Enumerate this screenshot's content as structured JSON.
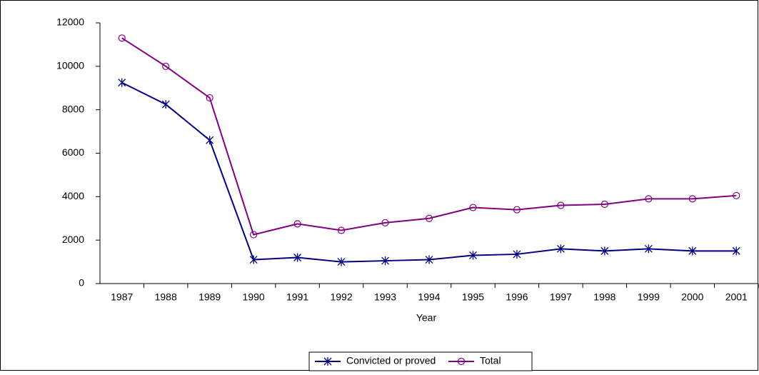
{
  "chart_data": {
    "type": "line",
    "x_label": "Year",
    "categories": [
      "1987",
      "1988",
      "1989",
      "1990",
      "1991",
      "1992",
      "1993",
      "1994",
      "1995",
      "1996",
      "1997",
      "1998",
      "1999",
      "2000",
      "2001"
    ],
    "series": [
      {
        "name": "Convicted or proved",
        "color": "#000080",
        "marker": "asterisk",
        "values": [
          9250,
          8250,
          6600,
          1100,
          1200,
          1000,
          1050,
          1100,
          1300,
          1350,
          1600,
          1500,
          1600,
          1500,
          1500
        ]
      },
      {
        "name": "Total",
        "color": "#800080",
        "marker": "circle",
        "values": [
          11300,
          10000,
          8550,
          2250,
          2750,
          2450,
          2800,
          3000,
          3500,
          3400,
          3600,
          3650,
          3900,
          3900,
          4050
        ]
      }
    ],
    "ylim": [
      0,
      12000
    ],
    "yticks": [
      0,
      2000,
      4000,
      6000,
      8000,
      10000,
      12000
    ],
    "grid": false,
    "legend": "bottom"
  }
}
